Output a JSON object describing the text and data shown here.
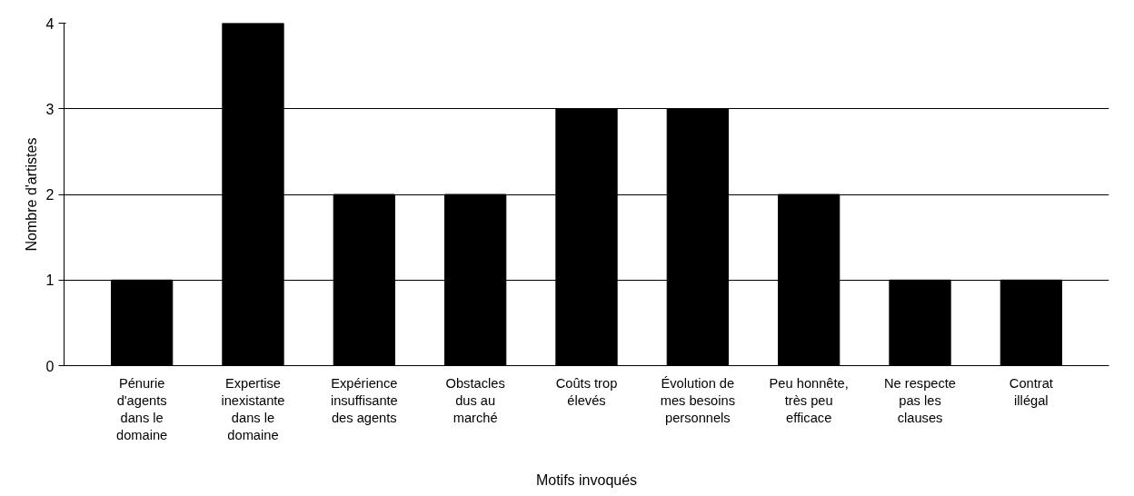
{
  "chart_data": {
    "type": "bar",
    "xlabel": "Motifs invoqués",
    "ylabel": "Nombre d'artistes",
    "categories": [
      "Pénurie d'agents dans le domaine",
      "Expertise inexistante dans le domaine",
      "Expérience insuffisante des agents",
      "Obstacles dus au marché",
      "Coûts trop élevés",
      "Évolution de mes besoins personnels",
      "Peu honnête, très peu efficace",
      "Ne respecte pas les clauses",
      "Contrat illégal"
    ],
    "values": [
      1,
      4,
      2,
      2,
      3,
      3,
      2,
      1,
      1
    ],
    "color": "#000000",
    "ylim": [
      0,
      4
    ],
    "yticks": [
      0,
      1,
      2,
      3,
      4
    ],
    "grid": "y"
  }
}
